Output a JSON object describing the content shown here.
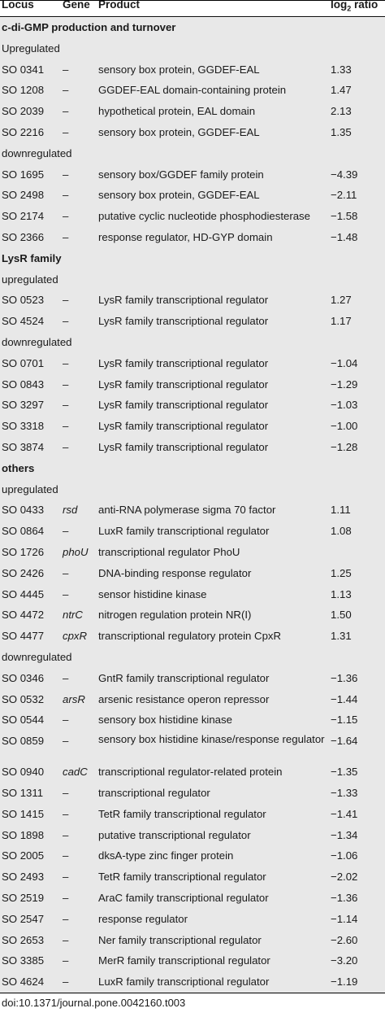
{
  "headers": {
    "locus": "Locus",
    "gene": "Gene",
    "product": "Product",
    "ratio_base": "log",
    "ratio_sub": "2",
    "ratio_tail": " ratio"
  },
  "rows": [
    {
      "kind": "section",
      "label": "c-di-GMP production and turnover"
    },
    {
      "kind": "sub",
      "label": "Upregulated"
    },
    {
      "kind": "data",
      "locus": "SO 0341",
      "gene": "–",
      "product": "sensory box protein, GGDEF-EAL",
      "ratio": "1.33"
    },
    {
      "kind": "data",
      "locus": "SO 1208",
      "gene": "–",
      "product": "GGDEF-EAL domain-containing protein",
      "ratio": "1.47"
    },
    {
      "kind": "data",
      "locus": "SO 2039",
      "gene": "–",
      "product": "hypothetical protein, EAL domain",
      "ratio": "2.13"
    },
    {
      "kind": "data",
      "locus": "SO 2216",
      "gene": "–",
      "product": "sensory box protein, GGDEF-EAL",
      "ratio": "1.35"
    },
    {
      "kind": "sub",
      "label": "downregulated"
    },
    {
      "kind": "data",
      "locus": "SO 1695",
      "gene": "–",
      "product": "sensory box/GGDEF family protein",
      "ratio": "−4.39"
    },
    {
      "kind": "data",
      "locus": "SO 2498",
      "gene": "–",
      "product": "sensory box protein, GGDEF-EAL",
      "ratio": "−2.11"
    },
    {
      "kind": "data",
      "locus": "SO 2174",
      "gene": "–",
      "product": "putative cyclic nucleotide phosphodiesterase",
      "ratio": "−1.58"
    },
    {
      "kind": "data",
      "locus": "SO 2366",
      "gene": "–",
      "product": "response regulator, HD-GYP domain",
      "ratio": "−1.48"
    },
    {
      "kind": "section",
      "label": "LysR family"
    },
    {
      "kind": "sub",
      "label": "upregulated"
    },
    {
      "kind": "data",
      "locus": "SO 0523",
      "gene": "–",
      "product": "LysR family transcriptional regulator",
      "ratio": "1.27"
    },
    {
      "kind": "data",
      "locus": "SO 4524",
      "gene": "–",
      "product": "LysR family transcriptional regulator",
      "ratio": "1.17"
    },
    {
      "kind": "sub",
      "label": "downregulated"
    },
    {
      "kind": "data",
      "locus": "SO 0701",
      "gene": "–",
      "product": "LysR family transcriptional regulator",
      "ratio": "−1.04"
    },
    {
      "kind": "data",
      "locus": "SO 0843",
      "gene": "–",
      "product": "LysR family transcriptional regulator",
      "ratio": "−1.29"
    },
    {
      "kind": "data",
      "locus": "SO 3297",
      "gene": "–",
      "product": "LysR family transcriptional regulator",
      "ratio": "−1.03"
    },
    {
      "kind": "data",
      "locus": "SO 3318",
      "gene": "–",
      "product": "LysR family transcriptional regulator",
      "ratio": "−1.00"
    },
    {
      "kind": "data",
      "locus": "SO 3874",
      "gene": "–",
      "product": "LysR family transcriptional regulator",
      "ratio": "−1.28"
    },
    {
      "kind": "section",
      "label": "others"
    },
    {
      "kind": "sub",
      "label": "upregulated"
    },
    {
      "kind": "data",
      "locus": "SO 0433",
      "gene": "rsd",
      "product": "anti-RNA polymerase sigma 70 factor",
      "ratio": "1.11"
    },
    {
      "kind": "data",
      "locus": "SO 0864",
      "gene": "–",
      "product": "LuxR family transcriptional regulator",
      "ratio": "1.08"
    },
    {
      "kind": "data",
      "locus": "SO 1726",
      "gene": "phoU",
      "product": "transcriptional regulator PhoU",
      "ratio": ""
    },
    {
      "kind": "data",
      "locus": "SO 2426",
      "gene": "–",
      "product": "DNA-binding response regulator",
      "ratio": "1.25"
    },
    {
      "kind": "data",
      "locus": "SO 4445",
      "gene": "–",
      "product": "sensor histidine kinase",
      "ratio": "1.13"
    },
    {
      "kind": "data",
      "locus": "SO 4472",
      "gene": "ntrC",
      "product": "nitrogen regulation protein NR(I)",
      "ratio": "1.50"
    },
    {
      "kind": "data",
      "locus": "SO 4477",
      "gene": "cpxR",
      "product": "transcriptional regulatory protein CpxR",
      "ratio": "1.31"
    },
    {
      "kind": "sub",
      "label": "downregulated"
    },
    {
      "kind": "data",
      "locus": "SO 0346",
      "gene": "–",
      "product": "GntR family transcriptional regulator",
      "ratio": "−1.36"
    },
    {
      "kind": "data",
      "locus": "SO 0532",
      "gene": "arsR",
      "product": "arsenic resistance operon repressor",
      "ratio": "−1.44"
    },
    {
      "kind": "data",
      "locus": "SO 0544",
      "gene": "–",
      "product": "sensory box histidine kinase",
      "ratio": "−1.15"
    },
    {
      "kind": "data",
      "locus": "SO 0859",
      "gene": "–",
      "product": "sensory box histidine kinase/response regulator",
      "ratio": "−1.64",
      "tall": true
    },
    {
      "kind": "data",
      "locus": "SO 0940",
      "gene": "cadC",
      "product": "transcriptional regulator-related protein",
      "ratio": "−1.35"
    },
    {
      "kind": "data",
      "locus": "SO 1311",
      "gene": "–",
      "product": "transcriptional regulator",
      "ratio": "−1.33"
    },
    {
      "kind": "data",
      "locus": "SO 1415",
      "gene": "–",
      "product": "TetR family transcriptional regulator",
      "ratio": "−1.41"
    },
    {
      "kind": "data",
      "locus": "SO 1898",
      "gene": "–",
      "product": "putative transcriptional regulator",
      "ratio": "−1.34"
    },
    {
      "kind": "data",
      "locus": "SO 2005",
      "gene": "–",
      "product": "dksA-type zinc finger protein",
      "ratio": "−1.06"
    },
    {
      "kind": "data",
      "locus": "SO 2493",
      "gene": "–",
      "product": "TetR family transcriptional regulator",
      "ratio": "−2.02"
    },
    {
      "kind": "data",
      "locus": "SO 2519",
      "gene": "–",
      "product": "AraC family transcriptional regulator",
      "ratio": "−1.36"
    },
    {
      "kind": "data",
      "locus": "SO 2547",
      "gene": "–",
      "product": "response regulator",
      "ratio": "−1.14"
    },
    {
      "kind": "data",
      "locus": "SO 2653",
      "gene": "–",
      "product": "Ner family transcriptional regulator",
      "ratio": "−2.60"
    },
    {
      "kind": "data",
      "locus": "SO 3385",
      "gene": "–",
      "product": "MerR family transcriptional regulator",
      "ratio": "−3.20"
    },
    {
      "kind": "data",
      "locus": "SO 4624",
      "gene": "–",
      "product": "LuxR family transcriptional regulator",
      "ratio": "−1.19"
    }
  ],
  "footer": {
    "doi": "doi:10.1371/journal.pone.0042160.t003"
  }
}
